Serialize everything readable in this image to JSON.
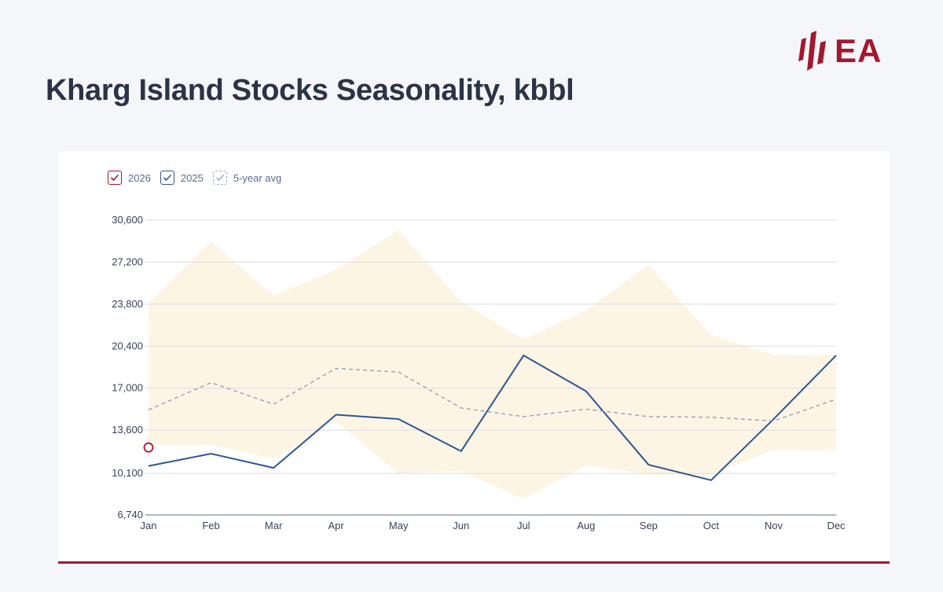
{
  "header": {
    "title": "Kharg Island Stocks Seasonality, kbbl"
  },
  "logo": {
    "text": "EA",
    "color": "#a3182f"
  },
  "legend": [
    {
      "label": "2026",
      "color": "#a3182f",
      "style": "solid"
    },
    {
      "label": "2025",
      "color": "#2d5694",
      "style": "solid"
    },
    {
      "label": "5-year avg",
      "color": "#8e9ab5",
      "style": "dashed"
    }
  ],
  "chart_data": {
    "type": "line",
    "title": "Kharg Island Stocks Seasonality, kbbl",
    "xlabel": "",
    "ylabel": "",
    "categories": [
      "Jan",
      "Feb",
      "Mar",
      "Apr",
      "May",
      "Jun",
      "Jul",
      "Aug",
      "Sep",
      "Oct",
      "Nov",
      "Dec"
    ],
    "y_ticks": [
      "30,600",
      "27,200",
      "23,800",
      "20,400",
      "17,000",
      "13,600",
      "10,100",
      "6,740"
    ],
    "ylim": [
      6740,
      30600
    ],
    "range_band": {
      "name": "5-year range",
      "color": "#fdf4e3",
      "upper": [
        23900,
        28900,
        24500,
        26600,
        29800,
        24000,
        20950,
        23300,
        27000,
        21300,
        19700,
        19650
      ],
      "lower": [
        12400,
        12400,
        11300,
        14300,
        10100,
        10300,
        8030,
        10750,
        10000,
        10000,
        12000,
        11950
      ]
    },
    "series": [
      {
        "name": "2026",
        "color": "#a3182f",
        "values": [
          12200,
          null,
          null,
          null,
          null,
          null,
          null,
          null,
          null,
          null,
          null,
          null
        ]
      },
      {
        "name": "2025",
        "color": "#2d5694",
        "values": [
          10700,
          11700,
          10550,
          14850,
          14500,
          11900,
          19650,
          16750,
          10800,
          9550,
          14500,
          19650
        ]
      },
      {
        "name": "5-year avg",
        "color": "#8e9ab5",
        "values": [
          15250,
          17450,
          15700,
          18600,
          18300,
          15400,
          14700,
          15300,
          14700,
          14650,
          14350,
          16100
        ]
      }
    ]
  }
}
